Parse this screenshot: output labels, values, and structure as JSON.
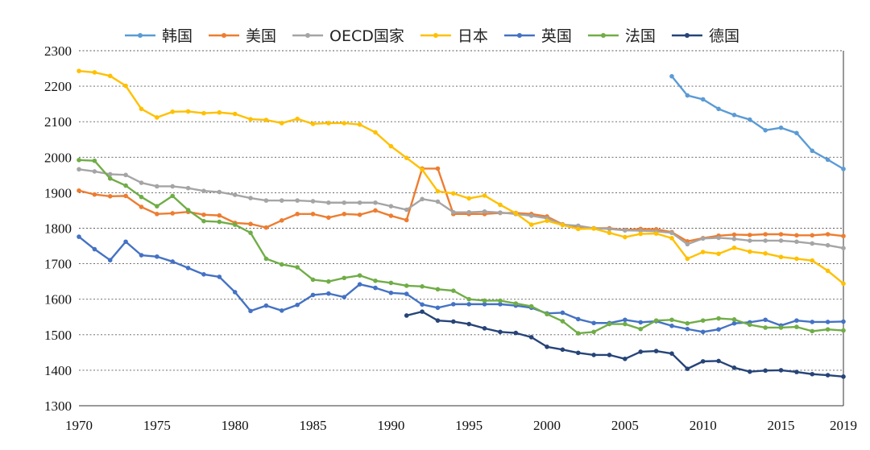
{
  "chart_data": {
    "type": "line",
    "title": "",
    "xlabel": "",
    "ylabel": "",
    "xlim": [
      1970,
      2019
    ],
    "ylim": [
      1300,
      2300
    ],
    "y_ticks": [
      1300,
      1400,
      1500,
      1600,
      1700,
      1800,
      1900,
      2000,
      2100,
      2200,
      2300
    ],
    "x_ticks": [
      1970,
      1975,
      1980,
      1985,
      1990,
      1995,
      2000,
      2005,
      2010,
      2015,
      2019
    ],
    "grid": "horizontal dotted",
    "legend_position": "top",
    "series": [
      {
        "name": "韩国",
        "color": "#5b9bd5",
        "x": [
          2008,
          2009,
          2010,
          2011,
          2012,
          2013,
          2014,
          2015,
          2016,
          2017,
          2018,
          2019
        ],
        "values": [
          2228,
          2174,
          2163,
          2136,
          2119,
          2106,
          2076,
          2083,
          2068,
          2018,
          1993,
          1967
        ]
      },
      {
        "name": "美国",
        "color": "#ed7d31",
        "x": [
          1970,
          1971,
          1972,
          1973,
          1974,
          1975,
          1976,
          1977,
          1978,
          1979,
          1980,
          1981,
          1982,
          1983,
          1984,
          1985,
          1986,
          1987,
          1988,
          1989,
          1990,
          1991,
          1992,
          1993,
          1994,
          1995,
          1996,
          1997,
          1998,
          1999,
          2000,
          2001,
          2002,
          2003,
          2004,
          2005,
          2006,
          2007,
          2008,
          2009,
          2010,
          2011,
          2012,
          2013,
          2014,
          2015,
          2016,
          2017,
          2018,
          2019
        ],
        "values": [
          1906,
          1895,
          1890,
          1891,
          1860,
          1840,
          1842,
          1846,
          1838,
          1836,
          1815,
          1812,
          1802,
          1822,
          1840,
          1840,
          1830,
          1840,
          1838,
          1850,
          1835,
          1823,
          1968,
          1968,
          1840,
          1840,
          1840,
          1843,
          1843,
          1840,
          1833,
          1811,
          1802,
          1800,
          1800,
          1795,
          1798,
          1797,
          1789,
          1763,
          1772,
          1779,
          1782,
          1781,
          1783,
          1783,
          1780,
          1780,
          1783,
          1778
        ]
      },
      {
        "name": "OECD国家",
        "color": "#a5a5a5",
        "x": [
          1970,
          1971,
          1972,
          1973,
          1974,
          1975,
          1976,
          1977,
          1978,
          1979,
          1980,
          1981,
          1982,
          1983,
          1984,
          1985,
          1986,
          1987,
          1988,
          1989,
          1990,
          1991,
          1992,
          1993,
          1994,
          1995,
          1996,
          1997,
          1998,
          1999,
          2000,
          2001,
          2002,
          2003,
          2004,
          2005,
          2006,
          2007,
          2008,
          2009,
          2010,
          2011,
          2012,
          2013,
          2014,
          2015,
          2016,
          2017,
          2018,
          2019
        ],
        "values": [
          1966,
          1960,
          1952,
          1950,
          1928,
          1918,
          1918,
          1913,
          1905,
          1902,
          1894,
          1885,
          1878,
          1878,
          1878,
          1876,
          1872,
          1872,
          1872,
          1872,
          1862,
          1852,
          1882,
          1875,
          1845,
          1845,
          1847,
          1844,
          1840,
          1835,
          1828,
          1810,
          1807,
          1800,
          1798,
          1794,
          1793,
          1791,
          1787,
          1755,
          1771,
          1773,
          1770,
          1765,
          1765,
          1765,
          1762,
          1757,
          1752,
          1744
        ]
      },
      {
        "name": "日本",
        "color": "#ffc000",
        "x": [
          1970,
          1971,
          1972,
          1973,
          1974,
          1975,
          1976,
          1977,
          1978,
          1979,
          1980,
          1981,
          1982,
          1983,
          1984,
          1985,
          1986,
          1987,
          1988,
          1989,
          1990,
          1991,
          1992,
          1993,
          1994,
          1995,
          1996,
          1997,
          1998,
          1999,
          2000,
          2001,
          2002,
          2003,
          2004,
          2005,
          2006,
          2007,
          2008,
          2009,
          2010,
          2011,
          2012,
          2013,
          2014,
          2015,
          2016,
          2017,
          2018,
          2019
        ],
        "values": [
          2243,
          2239,
          2229,
          2201,
          2136,
          2112,
          2128,
          2129,
          2124,
          2126,
          2122,
          2107,
          2105,
          2096,
          2108,
          2094,
          2096,
          2096,
          2092,
          2070,
          2031,
          1998,
          1965,
          1904,
          1898,
          1884,
          1892,
          1866,
          1842,
          1810,
          1821,
          1809,
          1798,
          1799,
          1787,
          1775,
          1784,
          1785,
          1772,
          1714,
          1733,
          1728,
          1745,
          1734,
          1729,
          1719,
          1714,
          1709,
          1680,
          1644
        ]
      },
      {
        "name": "英国",
        "color": "#4472c4",
        "x": [
          1970,
          1971,
          1972,
          1973,
          1974,
          1975,
          1976,
          1977,
          1978,
          1979,
          1980,
          1981,
          1982,
          1983,
          1984,
          1985,
          1986,
          1987,
          1988,
          1989,
          1990,
          1991,
          1992,
          1993,
          1994,
          1995,
          1996,
          1997,
          1998,
          1999,
          2000,
          2001,
          2002,
          2003,
          2004,
          2005,
          2006,
          2007,
          2008,
          2009,
          2010,
          2011,
          2012,
          2013,
          2014,
          2015,
          2016,
          2017,
          2018,
          2019
        ],
        "values": [
          1776,
          1741,
          1710,
          1762,
          1724,
          1720,
          1706,
          1688,
          1670,
          1663,
          1620,
          1567,
          1582,
          1568,
          1584,
          1612,
          1616,
          1606,
          1642,
          1632,
          1618,
          1615,
          1585,
          1576,
          1586,
          1586,
          1586,
          1586,
          1582,
          1576,
          1560,
          1562,
          1544,
          1533,
          1533,
          1542,
          1535,
          1538,
          1525,
          1516,
          1508,
          1515,
          1532,
          1535,
          1542,
          1526,
          1540,
          1536,
          1536,
          1537
        ]
      },
      {
        "name": "法国",
        "color": "#70ad47",
        "x": [
          1970,
          1971,
          1972,
          1973,
          1974,
          1975,
          1976,
          1977,
          1978,
          1979,
          1980,
          1981,
          1982,
          1983,
          1984,
          1985,
          1986,
          1987,
          1988,
          1989,
          1990,
          1991,
          1992,
          1993,
          1994,
          1995,
          1996,
          1997,
          1998,
          1999,
          2000,
          2001,
          2002,
          2003,
          2004,
          2005,
          2006,
          2007,
          2008,
          2009,
          2010,
          2011,
          2012,
          2013,
          2014,
          2015,
          2016,
          2017,
          2018,
          2019
        ],
        "values": [
          1992,
          1990,
          1940,
          1920,
          1888,
          1862,
          1891,
          1851,
          1820,
          1818,
          1810,
          1787,
          1714,
          1698,
          1690,
          1655,
          1650,
          1660,
          1667,
          1652,
          1646,
          1638,
          1636,
          1628,
          1624,
          1600,
          1596,
          1596,
          1588,
          1580,
          1558,
          1538,
          1504,
          1508,
          1530,
          1530,
          1516,
          1540,
          1542,
          1532,
          1540,
          1546,
          1543,
          1528,
          1520,
          1520,
          1522,
          1510,
          1515,
          1512
        ]
      },
      {
        "name": "德国",
        "color": "#264478",
        "x": [
          1991,
          1992,
          1993,
          1994,
          1995,
          1996,
          1997,
          1998,
          1999,
          2000,
          2001,
          2002,
          2003,
          2004,
          2005,
          2006,
          2007,
          2008,
          2009,
          2010,
          2011,
          2012,
          2013,
          2014,
          2015,
          2016,
          2017,
          2018,
          2019
        ],
        "values": [
          1554,
          1565,
          1540,
          1537,
          1530,
          1518,
          1508,
          1505,
          1493,
          1466,
          1458,
          1449,
          1443,
          1443,
          1432,
          1452,
          1454,
          1447,
          1404,
          1425,
          1426,
          1407,
          1396,
          1399,
          1400,
          1395,
          1389,
          1386,
          1382
        ]
      }
    ]
  }
}
